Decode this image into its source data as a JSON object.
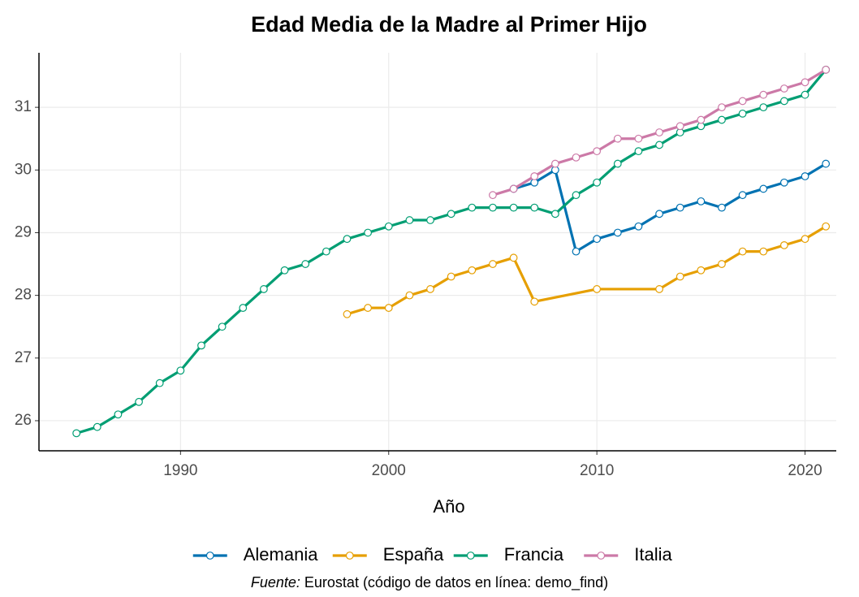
{
  "chart_data": {
    "type": "line",
    "title": "Edad Media de la Madre al Primer Hijo",
    "x_label": "Año",
    "caption_label": "Fuente:",
    "caption": "Eurostat (código de datos en línea: demo_find)",
    "xlim": [
      1983.2,
      2021.5
    ],
    "xticks": [
      1990,
      2000,
      2010,
      2020
    ],
    "ylim": [
      25.52,
      31.87
    ],
    "yticks": [
      26,
      27,
      28,
      29,
      30,
      31
    ],
    "grid": true,
    "legend": "bottom",
    "series": [
      {
        "name": "Alemania",
        "color": "#0072B2",
        "x": [
          2006,
          2007,
          2008,
          2009,
          2010,
          2011,
          2012,
          2013,
          2014,
          2015,
          2016,
          2017,
          2018,
          2019,
          2020,
          2021
        ],
        "values": [
          29.7,
          29.8,
          30.0,
          28.7,
          28.9,
          29.0,
          29.1,
          29.3,
          29.4,
          29.5,
          29.4,
          29.6,
          29.7,
          29.8,
          29.9,
          30.1
        ]
      },
      {
        "name": "España",
        "color": "#E69F00",
        "x": [
          1998,
          1999,
          2000,
          2001,
          2002,
          2003,
          2004,
          2005,
          2006,
          2007,
          2010,
          2013,
          2014,
          2015,
          2016,
          2017,
          2018,
          2019,
          2020,
          2021
        ],
        "values": [
          27.7,
          27.8,
          27.8,
          28.0,
          28.1,
          28.3,
          28.4,
          28.5,
          28.6,
          27.9,
          28.1,
          28.1,
          28.3,
          28.4,
          28.5,
          28.7,
          28.7,
          28.8,
          28.9,
          29.1
        ]
      },
      {
        "name": "Francia",
        "color": "#009E73",
        "x": [
          1985,
          1986,
          1987,
          1988,
          1989,
          1990,
          1991,
          1992,
          1993,
          1994,
          1995,
          1996,
          1997,
          1998,
          1999,
          2000,
          2001,
          2002,
          2003,
          2004,
          2005,
          2006,
          2007,
          2008,
          2009,
          2010,
          2011,
          2012,
          2013,
          2014,
          2015,
          2016,
          2017,
          2018,
          2019,
          2020,
          2021
        ],
        "values": [
          25.8,
          25.9,
          26.1,
          26.3,
          26.6,
          26.8,
          27.2,
          27.5,
          27.8,
          28.1,
          28.4,
          28.5,
          28.7,
          28.9,
          29.0,
          29.1,
          29.2,
          29.2,
          29.3,
          29.4,
          29.4,
          29.4,
          29.4,
          29.3,
          29.6,
          29.8,
          30.1,
          30.3,
          30.4,
          30.6,
          30.7,
          30.8,
          30.9,
          31.0,
          31.1,
          31.2,
          31.6
        ]
      },
      {
        "name": "Italia",
        "color": "#CC79A7",
        "x": [
          2005,
          2006,
          2007,
          2008,
          2009,
          2010,
          2011,
          2012,
          2013,
          2014,
          2015,
          2016,
          2017,
          2018,
          2019,
          2020,
          2021
        ],
        "values": [
          29.6,
          29.7,
          29.9,
          30.1,
          30.2,
          30.3,
          30.5,
          30.5,
          30.6,
          30.7,
          30.8,
          31.0,
          31.1,
          31.2,
          31.3,
          31.4,
          31.6
        ]
      }
    ]
  }
}
